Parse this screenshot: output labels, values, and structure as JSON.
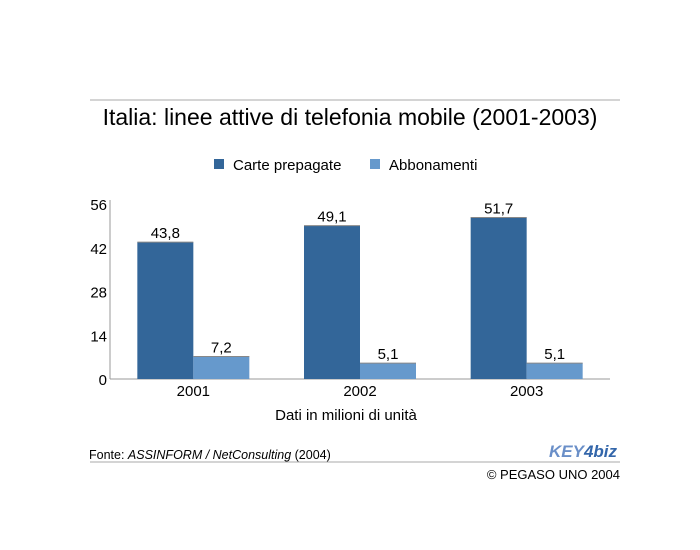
{
  "chart_data": {
    "type": "bar",
    "title": "Italia: linee attive di telefonia mobile (2001-2003)",
    "categories": [
      "2001",
      "2002",
      "2003"
    ],
    "series": [
      {
        "name": "Carte prepagate",
        "values": [
          43.8,
          49.1,
          51.7
        ],
        "labels": [
          "43,8",
          "49,1",
          "51,7"
        ],
        "color": "#336699"
      },
      {
        "name": "Abbonamenti",
        "values": [
          7.2,
          5.1,
          5.1
        ],
        "labels": [
          "7,2",
          "5,1",
          "5,1"
        ],
        "color": "#6699cc"
      }
    ],
    "xlabel": "Dati in milioni di unità",
    "ylabel": "",
    "ylim": [
      0,
      56
    ],
    "yticks": [
      "0",
      "14",
      "28",
      "42",
      "56"
    ],
    "legend_position": "top-center",
    "grid": false
  },
  "footer": {
    "source_prefix": "Fonte: ",
    "source_italic": "ASSINFORM / NetConsulting",
    "source_suffix": " (2004)",
    "logo_text": "KEY4biz",
    "copyright": "© PEGASO UNO 2004"
  }
}
